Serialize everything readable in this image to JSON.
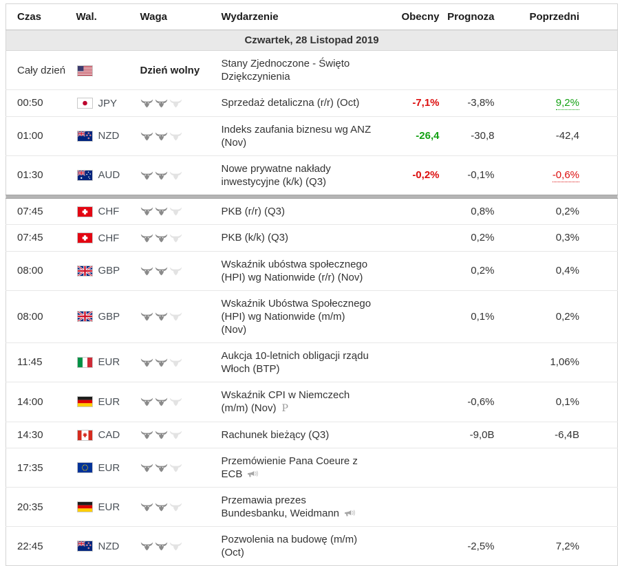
{
  "header": {
    "columns": [
      "Czas",
      "Wal.",
      "Waga",
      "Wydarzenie",
      "Obecny",
      "Prognoza",
      "Poprzedni"
    ]
  },
  "date_header": "Czwartek, 28 Listopad 2019",
  "icons": {
    "preliminary": "P"
  },
  "colors": {
    "positive": "#13a113",
    "negative": "#dc0e0e",
    "date_bar_bg": "#e9e9e9",
    "now_marker": "#b5b5b5"
  },
  "rows": [
    {
      "time": "Cały dzień",
      "flag": "us",
      "currency": "",
      "holiday_label": "Dzień wolny",
      "event": "Stany Zjednoczone - Święto Dziękczynienia",
      "actual": "",
      "forecast": "",
      "previous": ""
    },
    {
      "time": "00:50",
      "flag": "jp",
      "currency": "JPY",
      "bulls": "2",
      "event": "Sprzedaż detaliczna (r/r) (Oct)",
      "actual": "-7,1%",
      "actual_style": "neg",
      "forecast": "-3,8%",
      "previous": "9,2%",
      "previous_style": "pos-link"
    },
    {
      "time": "01:00",
      "flag": "nz",
      "currency": "NZD",
      "bulls": "2",
      "event": "Indeks zaufania biznesu wg ANZ\n(Nov)",
      "actual": "-26,4",
      "actual_style": "pos",
      "forecast": "-30,8",
      "previous": "-42,4"
    },
    {
      "time": "01:30",
      "flag": "au",
      "currency": "AUD",
      "bulls": "2",
      "event": "Nowe prywatne nakłady\ninwestycyjne (k/k) (Q3)",
      "actual": "-0,2%",
      "actual_style": "neg",
      "forecast": "-0,1%",
      "previous": "-0,6%",
      "previous_style": "neg-link"
    },
    {
      "time": "07:45",
      "flag": "ch",
      "currency": "CHF",
      "bulls": "2",
      "event": "PKB (r/r) (Q3)",
      "actual": "",
      "forecast": "0,8%",
      "previous": "0,2%"
    },
    {
      "time": "07:45",
      "flag": "ch",
      "currency": "CHF",
      "bulls": "2",
      "event": "PKB (k/k) (Q3)",
      "actual": "",
      "forecast": "0,2%",
      "previous": "0,3%"
    },
    {
      "time": "08:00",
      "flag": "gb",
      "currency": "GBP",
      "bulls": "2",
      "event": "Wskaźnik ubóstwa społecznego\n(HPI) wg Nationwide (r/r) (Nov)",
      "actual": "",
      "forecast": "0,2%",
      "previous": "0,4%"
    },
    {
      "time": "08:00",
      "flag": "gb",
      "currency": "GBP",
      "bulls": "2",
      "event": "Wskaźnik Ubóstwa Społecznego\n(HPI) wg Nationwide (m/m)\n(Nov)",
      "actual": "",
      "forecast": "0,1%",
      "previous": "0,2%"
    },
    {
      "time": "11:45",
      "flag": "it",
      "currency": "EUR",
      "bulls": "2",
      "event": "Aukcja 10-letnich obligacji rządu\nWłoch (BTP)",
      "actual": "",
      "forecast": "",
      "previous": "1,06%"
    },
    {
      "time": "14:00",
      "flag": "de",
      "currency": "EUR",
      "bulls": "2",
      "event": "Wskaźnik CPI w Niemczech\n(m/m) (Nov)",
      "actual": "",
      "forecast": "-0,6%",
      "previous": "0,1%"
    },
    {
      "time": "14:30",
      "flag": "ca",
      "currency": "CAD",
      "bulls": "2",
      "event": "Rachunek bieżący (Q3)",
      "actual": "",
      "forecast": "-9,0B",
      "previous": "-6,4B"
    },
    {
      "time": "17:35",
      "flag": "eu",
      "currency": "EUR",
      "bulls": "2",
      "event": "Przemówienie Pana Coeure z\nECB",
      "actual": "",
      "forecast": "",
      "previous": ""
    },
    {
      "time": "20:35",
      "flag": "de",
      "currency": "EUR",
      "bulls": "2",
      "event": "Przemawia prezes\nBundesbanku, Weidmann",
      "actual": "",
      "forecast": "",
      "previous": ""
    },
    {
      "time": "22:45",
      "flag": "nz",
      "currency": "NZD",
      "bulls": "2",
      "event": "Pozwolenia na budowę (m/m)\n(Oct)",
      "actual": "",
      "forecast": "-2,5%",
      "previous": "7,2%"
    }
  ]
}
